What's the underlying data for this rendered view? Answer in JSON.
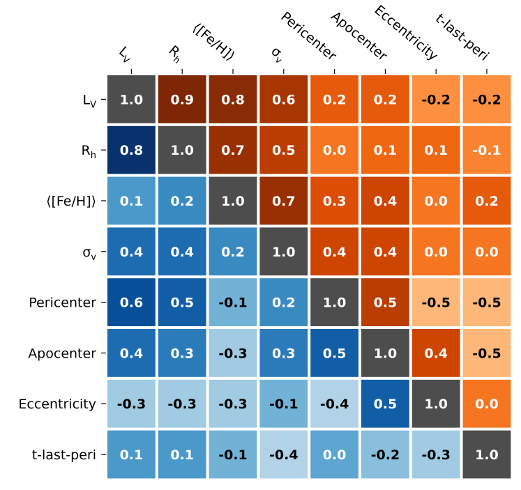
{
  "chart_data": {
    "type": "heatmap",
    "title": "",
    "row_labels_html": [
      "L<tspan class='sub'>V</tspan>",
      "R<tspan class='sub'>h</tspan>",
      "⟨[Fe/H]⟩",
      "σ<tspan class='sub'>v</tspan>",
      "Pericenter",
      "Apocenter",
      "Eccentricity",
      "t-last-peri"
    ],
    "row_labels": [
      "LV",
      "Rh",
      "⟨[Fe/H]⟩",
      "σv",
      "Pericenter",
      "Apocenter",
      "Eccentricity",
      "t-last-peri"
    ],
    "col_labels": [
      "LV",
      "Rh",
      "⟨[Fe/H]⟩",
      "σv",
      "Pericenter",
      "Apocenter",
      "Eccentricity",
      "t-last-peri"
    ],
    "values": [
      [
        1.0,
        0.9,
        0.8,
        0.6,
        0.2,
        0.2,
        -0.2,
        -0.2
      ],
      [
        0.8,
        1.0,
        0.7,
        0.5,
        0.0,
        0.1,
        0.1,
        -0.1
      ],
      [
        0.1,
        0.2,
        1.0,
        0.7,
        0.3,
        0.4,
        0.0,
        0.2
      ],
      [
        0.4,
        0.4,
        0.2,
        1.0,
        0.4,
        0.4,
        0.0,
        0.0
      ],
      [
        0.6,
        0.5,
        -0.1,
        0.2,
        1.0,
        0.5,
        -0.5,
        -0.5
      ],
      [
        0.4,
        0.3,
        -0.3,
        0.3,
        0.5,
        1.0,
        0.4,
        -0.5
      ],
      [
        -0.3,
        -0.3,
        -0.3,
        -0.1,
        -0.4,
        0.5,
        1.0,
        0.0
      ],
      [
        0.1,
        0.1,
        -0.1,
        -0.4,
        0.0,
        -0.2,
        -0.3,
        1.0
      ]
    ],
    "value_labels": [
      [
        "1.0",
        "0.9",
        "0.8",
        "0.6",
        "0.2",
        "0.2",
        "-0.2",
        "-0.2"
      ],
      [
        "0.8",
        "1.0",
        "0.7",
        "0.5",
        "0.0",
        "0.1",
        "0.1",
        "-0.1"
      ],
      [
        "0.1",
        "0.2",
        "1.0",
        "0.7",
        "0.3",
        "0.4",
        "0.0",
        "0.2"
      ],
      [
        "0.4",
        "0.4",
        "0.2",
        "1.0",
        "0.4",
        "0.4",
        "0.0",
        "0.0"
      ],
      [
        "0.6",
        "0.5",
        "-0.1",
        "0.2",
        "1.0",
        "0.5",
        "-0.5",
        "-0.5"
      ],
      [
        "0.4",
        "0.3",
        "-0.3",
        "0.3",
        "0.5",
        "1.0",
        "0.4",
        "-0.5"
      ],
      [
        "-0.3",
        "-0.3",
        "-0.3",
        "-0.1",
        "-0.4",
        "0.5",
        "1.0",
        "0.0"
      ],
      [
        "0.1",
        "0.1",
        "-0.1",
        "-0.4",
        "0.0",
        "-0.2",
        "-0.3",
        "1.0"
      ]
    ],
    "upper_triangle_colormap": "Oranges",
    "lower_triangle_colormap": "Blues",
    "diagonal_color": "#4d4d4d",
    "label_colors": {
      "light_text": "#ffffff",
      "dark_text": "#000000"
    },
    "legend": "none",
    "grid": false
  }
}
